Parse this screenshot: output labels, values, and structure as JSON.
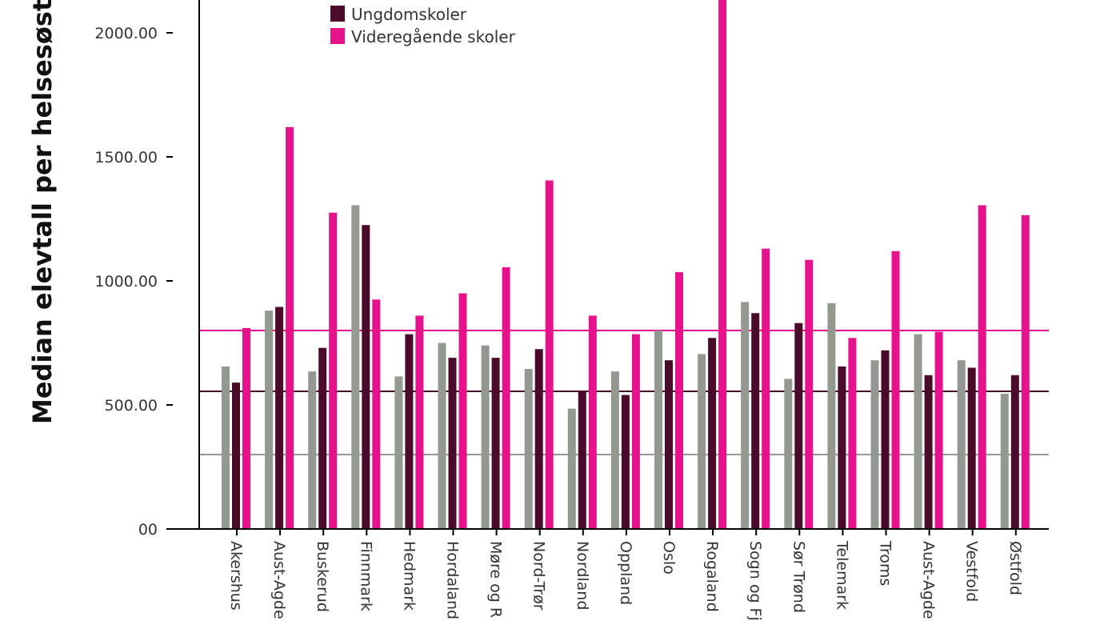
{
  "chart_data": {
    "type": "bar",
    "ylabel": "Median elevtall per helsesøster",
    "ylim": [
      0,
      2150
    ],
    "yticks": [
      {
        "value": 0,
        "label": "00"
      },
      {
        "value": 500,
        "label": "500.00"
      },
      {
        "value": 1000,
        "label": "1000.00"
      },
      {
        "value": 1500,
        "label": "1500.00"
      },
      {
        "value": 2000,
        "label": "2000.00"
      }
    ],
    "categories": [
      "Akershus",
      "Aust-Agde",
      "Buskerud",
      "Finnmark",
      "Hedmark",
      "Hordaland",
      "Møre og R",
      "Nord-Trør",
      "Nordland",
      "Oppland",
      "Oslo",
      "Rogaland",
      "Sogn og Fj",
      "Sør Trønd",
      "Telemark",
      "Troms",
      "Aust-Agde",
      "Vestfold",
      "Østfold"
    ],
    "series": [
      {
        "name": "",
        "color": "#939990",
        "values": [
          655,
          880,
          635,
          1305,
          615,
          750,
          740,
          645,
          485,
          635,
          800,
          705,
          915,
          605,
          910,
          680,
          785,
          680,
          545
        ]
      },
      {
        "name": "Ungdomskoler",
        "color": "#4a0a2a",
        "values": [
          590,
          895,
          730,
          1225,
          785,
          690,
          690,
          725,
          555,
          540,
          680,
          770,
          870,
          830,
          655,
          720,
          620,
          650,
          620
        ]
      },
      {
        "name": "Videregående skoler",
        "color": "#e6128c",
        "values": [
          810,
          1620,
          1275,
          925,
          860,
          950,
          1055,
          1405,
          860,
          785,
          1035,
          2160,
          1130,
          1085,
          770,
          1120,
          795,
          1305,
          1265
        ]
      }
    ],
    "reference_lines": [
      {
        "value": 300,
        "color": "#939990"
      },
      {
        "value": 555,
        "color": "#4a0a2a"
      },
      {
        "value": 800,
        "color": "#e6128c"
      }
    ],
    "legend_placement": "top-left"
  }
}
